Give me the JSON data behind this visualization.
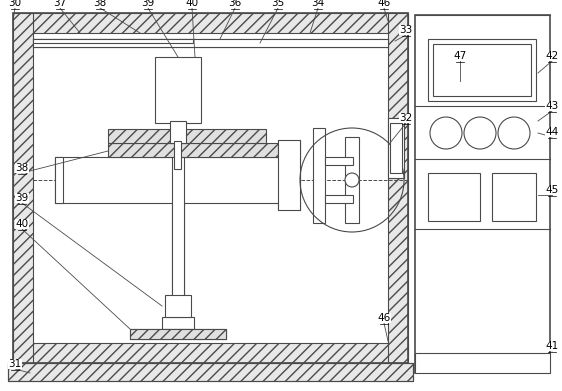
{
  "bg_color": "#ffffff",
  "lc": "#4a4a4a",
  "lw": 0.8,
  "lw2": 1.2,
  "fs": 7.5
}
